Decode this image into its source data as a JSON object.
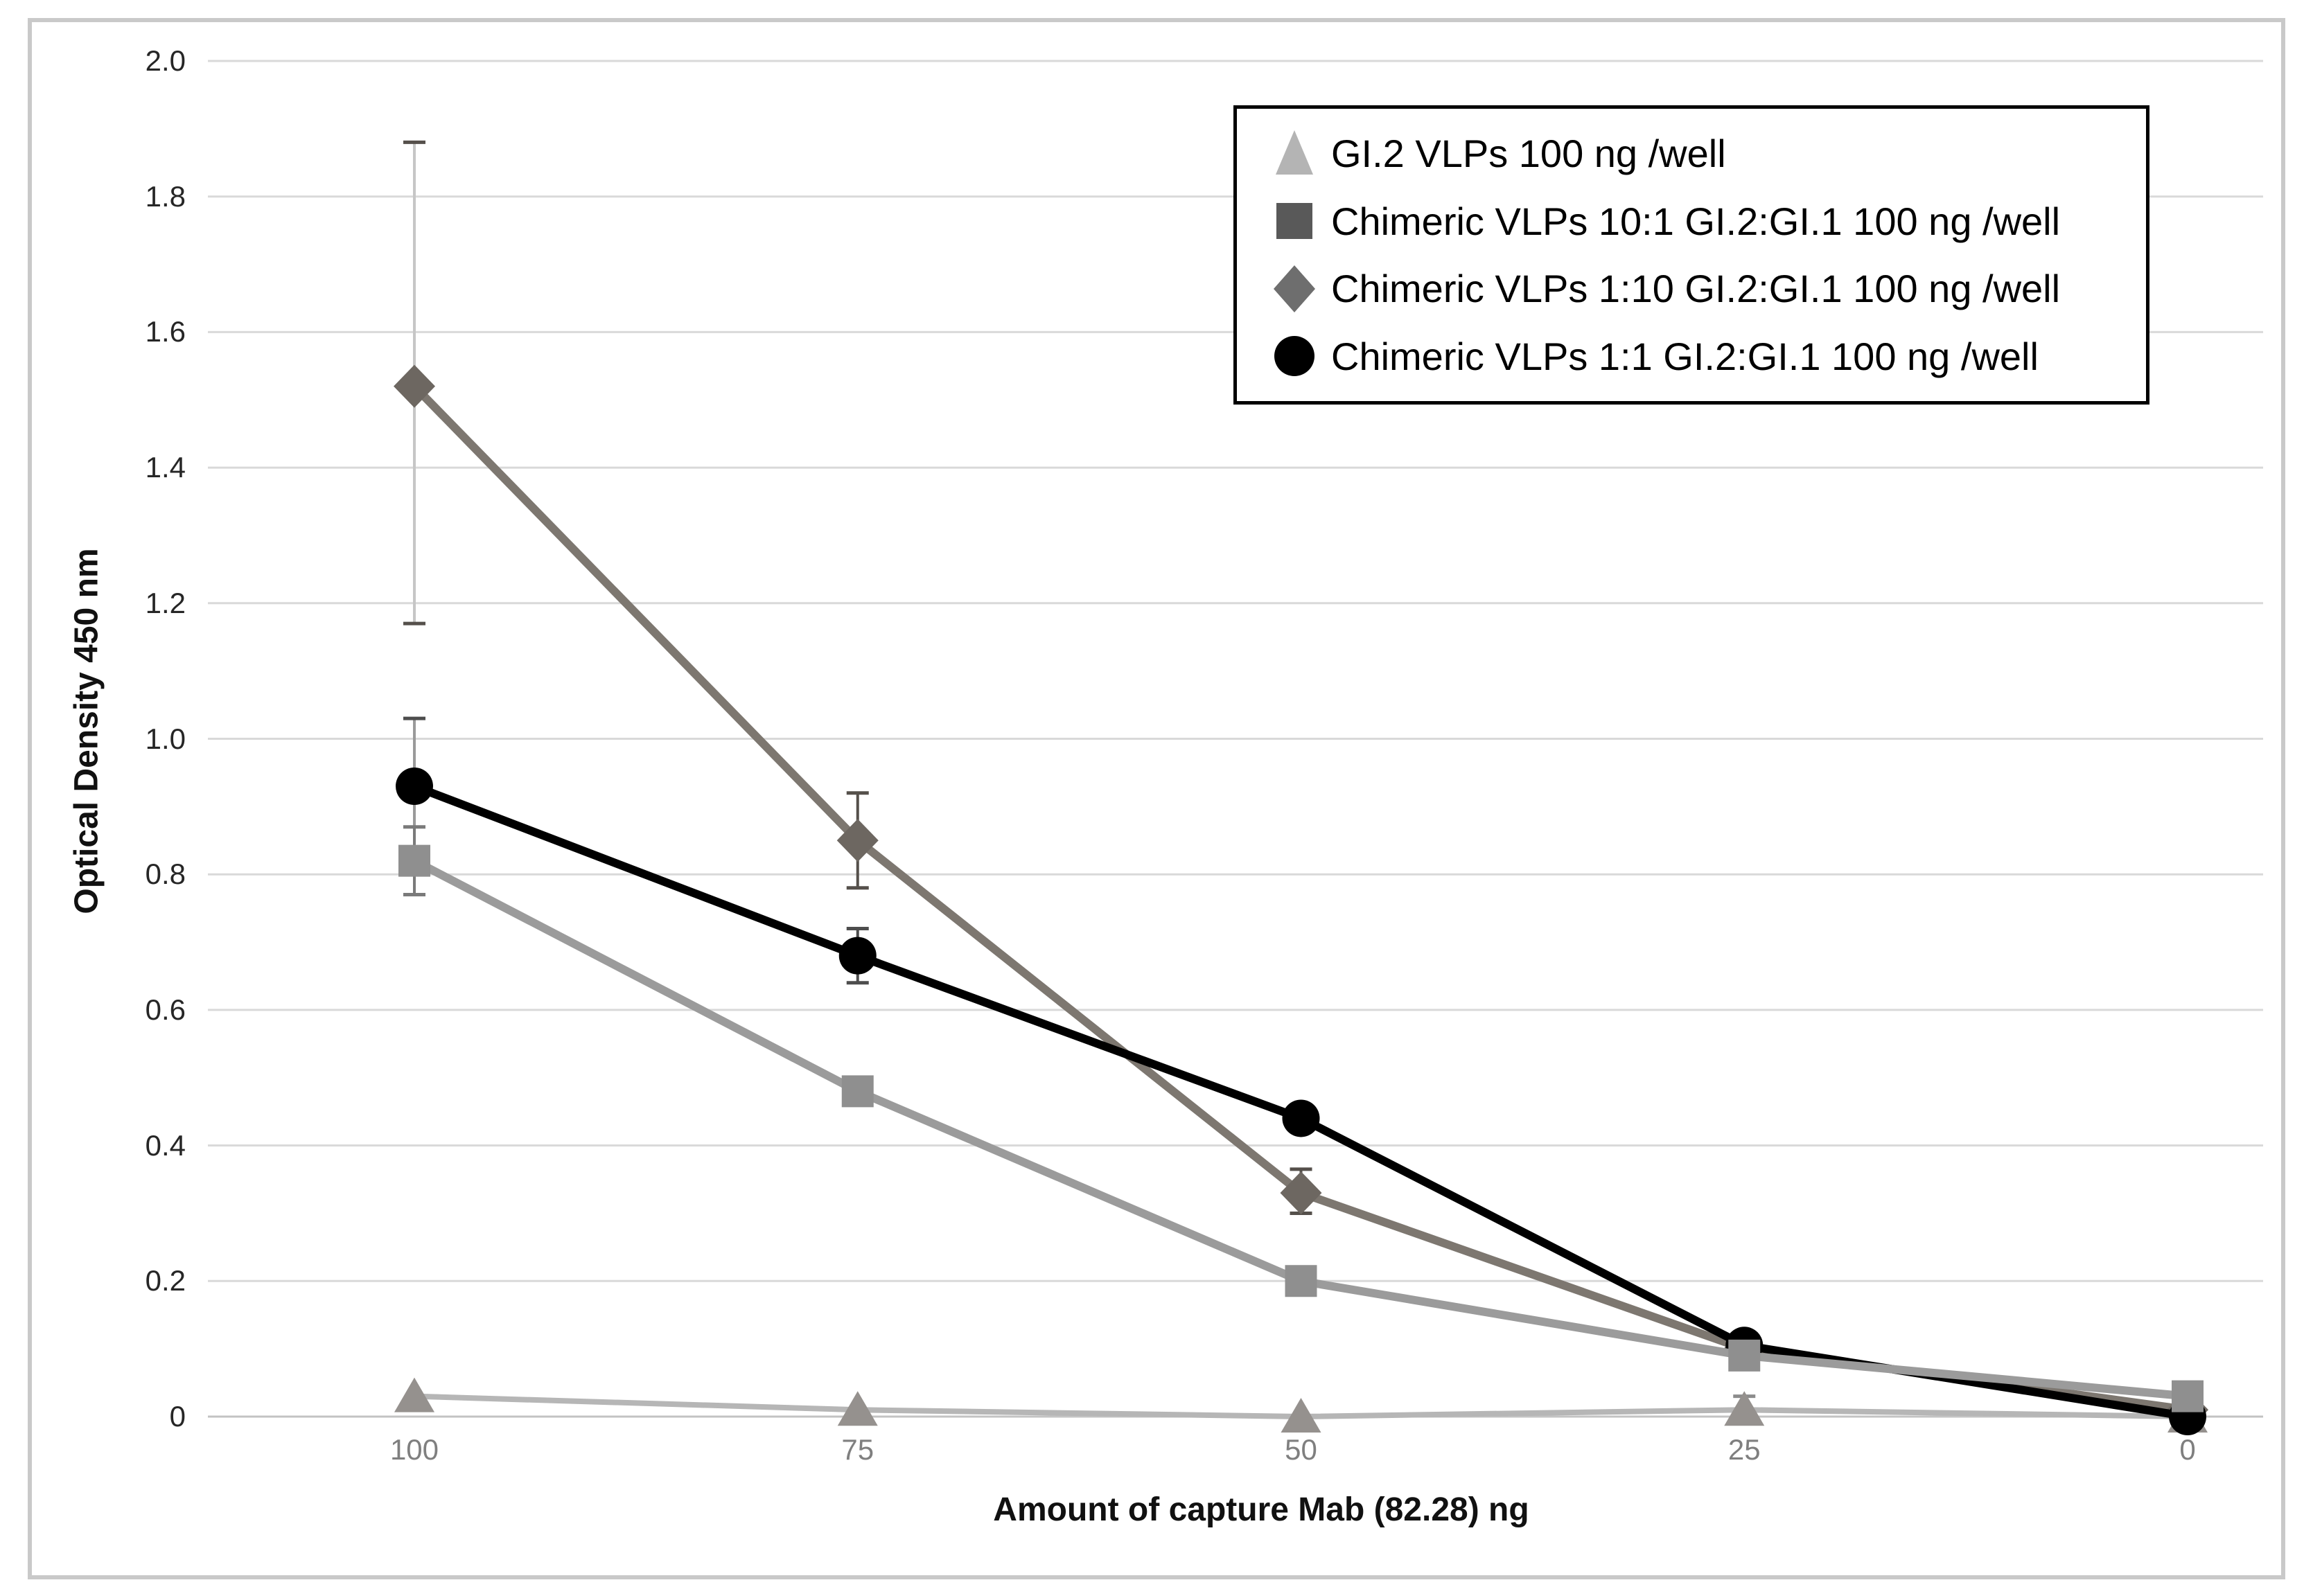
{
  "figure": {
    "background": "#ffffff",
    "border_color": "#c9c9c9"
  },
  "chart_data": {
    "type": "line",
    "title": "",
    "xlabel": "Amount of capture Mab (82.28) ng",
    "ylabel": "Optical Density 450 nm",
    "x": [
      100,
      75,
      50,
      25,
      0
    ],
    "xtick_labels": [
      "100",
      "75",
      "50",
      "25",
      "0"
    ],
    "ytick_labels": [
      "2.0",
      "1.8",
      "1.6",
      "1.4",
      "1.2",
      "1.0",
      "0.8",
      "0.6",
      "0.4",
      "0.2",
      "0"
    ],
    "ylim": [
      0,
      2.0
    ],
    "ytick_step": 0.2,
    "x_axis_reversed": true,
    "grid": "horizontal-only",
    "legend_position": "top-right",
    "axis_colors": {
      "gridline": "#d9d9d9",
      "zero_line": "#c3c3c3",
      "x_tick_text": "#7f7f7f",
      "y_tick_text": "#262626"
    },
    "draw_order": [
      0,
      2,
      3,
      1
    ],
    "series": [
      {
        "name": "GI.2 VLPs 100 ng /well",
        "marker": "triangle",
        "marker_color": "#95918e",
        "legend_marker_color": "#b4b4b4",
        "line_color": "#b6b6b6",
        "line_width": 8,
        "err_color": "#8c8c8c",
        "values": [
          0.03,
          0.01,
          0.0,
          0.01,
          0.0
        ],
        "errors": [
          null,
          null,
          null,
          [
            0.02,
            0.02
          ],
          null
        ]
      },
      {
        "name": "Chimeric VLPs 10:1 GI.2:GI.1 100 ng /well",
        "marker": "square",
        "marker_color": "#8f8f8f",
        "legend_marker_color": "#595959",
        "line_color": "#9b9b9b",
        "line_width": 12,
        "err_color": "#7a7a7a",
        "values": [
          0.82,
          0.48,
          0.2,
          0.09,
          0.03
        ],
        "errors": [
          [
            0.05,
            0.05
          ],
          null,
          null,
          null,
          null
        ]
      },
      {
        "name": "Chimeric VLPs 1:10 GI.2:GI.1 100 ng /well",
        "marker": "diamond",
        "marker_color": "#6d6761",
        "legend_marker_color": "#6e6e6e",
        "line_color": "#7d7770",
        "line_width": 12,
        "err_color": "#55504b",
        "values": [
          1.52,
          0.85,
          0.33,
          0.1,
          0.01
        ],
        "errors": [
          [
            0.36,
            0.35,
            "#c6c6c6"
          ],
          [
            0.07,
            0.07
          ],
          [
            0.035,
            0.03
          ],
          null,
          null
        ]
      },
      {
        "name": "Chimeric VLPs 1:1 GI.2:GI.1 100 ng /well",
        "marker": "circle",
        "marker_color": "#000000",
        "legend_marker_color": "#000000",
        "line_color": "#000000",
        "line_width": 12,
        "err_color": "#4d4d4d",
        "values": [
          0.93,
          0.68,
          0.44,
          0.105,
          0.0
        ],
        "errors": [
          [
            0.1,
            0.1,
            "#9a9a9a"
          ],
          [
            0.04,
            0.04
          ],
          null,
          null,
          null
        ]
      }
    ]
  }
}
